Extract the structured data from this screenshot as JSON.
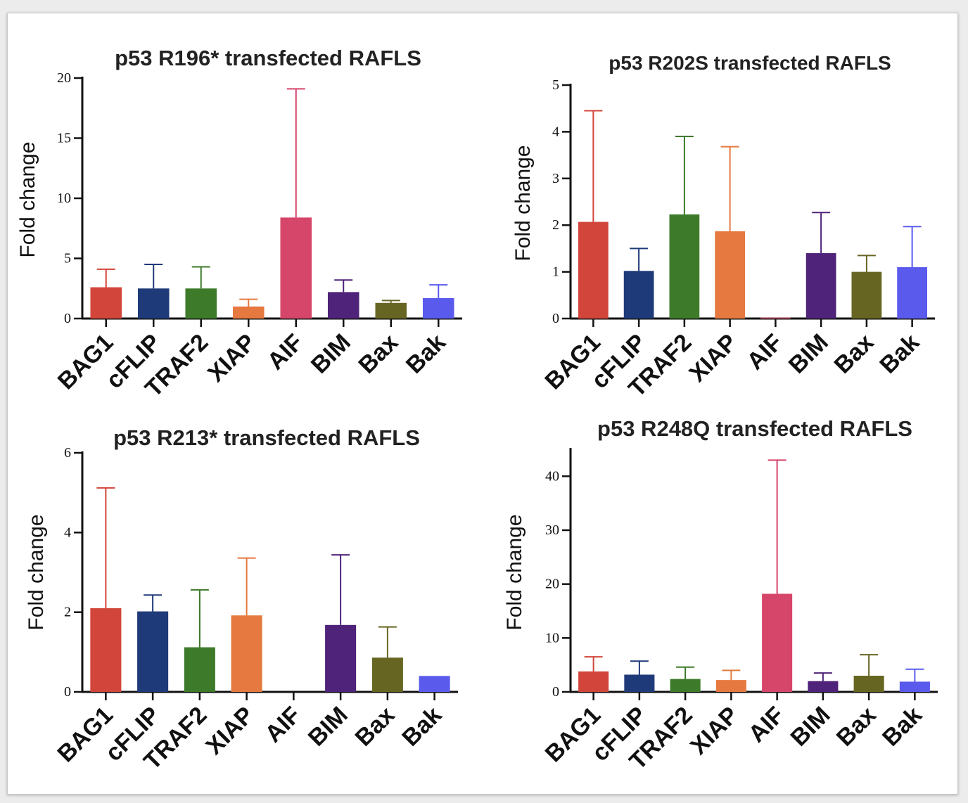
{
  "chart_data": [
    {
      "type": "bar",
      "title": "p53 R196* transfected RAFLS",
      "ylabel": "Fold change",
      "xlabel": "",
      "ylim": [
        0,
        20
      ],
      "yticks": [
        "0",
        "5",
        "10",
        "15",
        "20"
      ],
      "categories": [
        "BAG1",
        "cFLIP",
        "TRAF2",
        "XIAP",
        "AIF",
        "BIM",
        "Bax",
        "Bak"
      ],
      "values": [
        2.6,
        2.5,
        2.5,
        1.0,
        8.4,
        2.2,
        1.3,
        1.7
      ],
      "errors": [
        1.5,
        2.0,
        1.8,
        0.6,
        10.7,
        1.0,
        0.2,
        1.1
      ],
      "colors": [
        "#d2453a",
        "#1f3a78",
        "#3d7a2a",
        "#e5793f",
        "#d6456a",
        "#4e2379",
        "#676522",
        "#5a5aed"
      ]
    },
    {
      "type": "bar",
      "title": "p53 R202S transfected RAFLS",
      "ylabel": "Fold change",
      "xlabel": "",
      "ylim": [
        0,
        5
      ],
      "yticks": [
        "0",
        "1",
        "2",
        "3",
        "4",
        "5"
      ],
      "categories": [
        "BAG1",
        "cFLIP",
        "TRAF2",
        "XIAP",
        "AIF",
        "BIM",
        "Bax",
        "Bak"
      ],
      "values": [
        2.07,
        1.02,
        2.23,
        1.87,
        0.02,
        1.4,
        1.0,
        1.1
      ],
      "errors": [
        2.38,
        0.48,
        1.67,
        1.81,
        0.0,
        0.87,
        0.35,
        0.87
      ],
      "colors": [
        "#d2453a",
        "#1f3a78",
        "#3d7a2a",
        "#e5793f",
        "#d6456a",
        "#4e2379",
        "#676522",
        "#5a5aed"
      ]
    },
    {
      "type": "bar",
      "title": "p53 R213* transfected RAFLS",
      "ylabel": "Fold change",
      "xlabel": "",
      "ylim": [
        0,
        6
      ],
      "yticks": [
        "0",
        "2",
        "4",
        "6"
      ],
      "categories": [
        "BAG1",
        "cFLIP",
        "TRAF2",
        "XIAP",
        "AIF",
        "BIM",
        "Bax",
        "Bak"
      ],
      "values": [
        2.1,
        2.02,
        1.12,
        1.92,
        0.0,
        1.68,
        0.86,
        0.4
      ],
      "errors": [
        3.02,
        0.41,
        1.44,
        1.44,
        0.0,
        1.76,
        0.77,
        0.0
      ],
      "colors": [
        "#d2453a",
        "#1f3a78",
        "#3d7a2a",
        "#e5793f",
        "#d6456a",
        "#4e2379",
        "#676522",
        "#5a5aed"
      ]
    },
    {
      "type": "bar",
      "title": "p53 R248Q transfected RAFLS",
      "ylabel": "Fold change",
      "xlabel": "",
      "ylim": [
        0,
        45
      ],
      "yticks": [
        "0",
        "10",
        "20",
        "30",
        "40"
      ],
      "categories": [
        "BAG1",
        "cFLIP",
        "TRAF2",
        "XIAP",
        "AIF",
        "BIM",
        "Bax",
        "Bak"
      ],
      "values": [
        3.8,
        3.2,
        2.4,
        2.2,
        18.2,
        2.0,
        3.0,
        1.9
      ],
      "errors": [
        2.7,
        2.5,
        2.2,
        1.8,
        24.8,
        1.5,
        3.9,
        2.3
      ],
      "colors": [
        "#d2453a",
        "#1f3a78",
        "#3d7a2a",
        "#e5793f",
        "#d6456a",
        "#4e2379",
        "#676522",
        "#5a5aed"
      ]
    }
  ]
}
